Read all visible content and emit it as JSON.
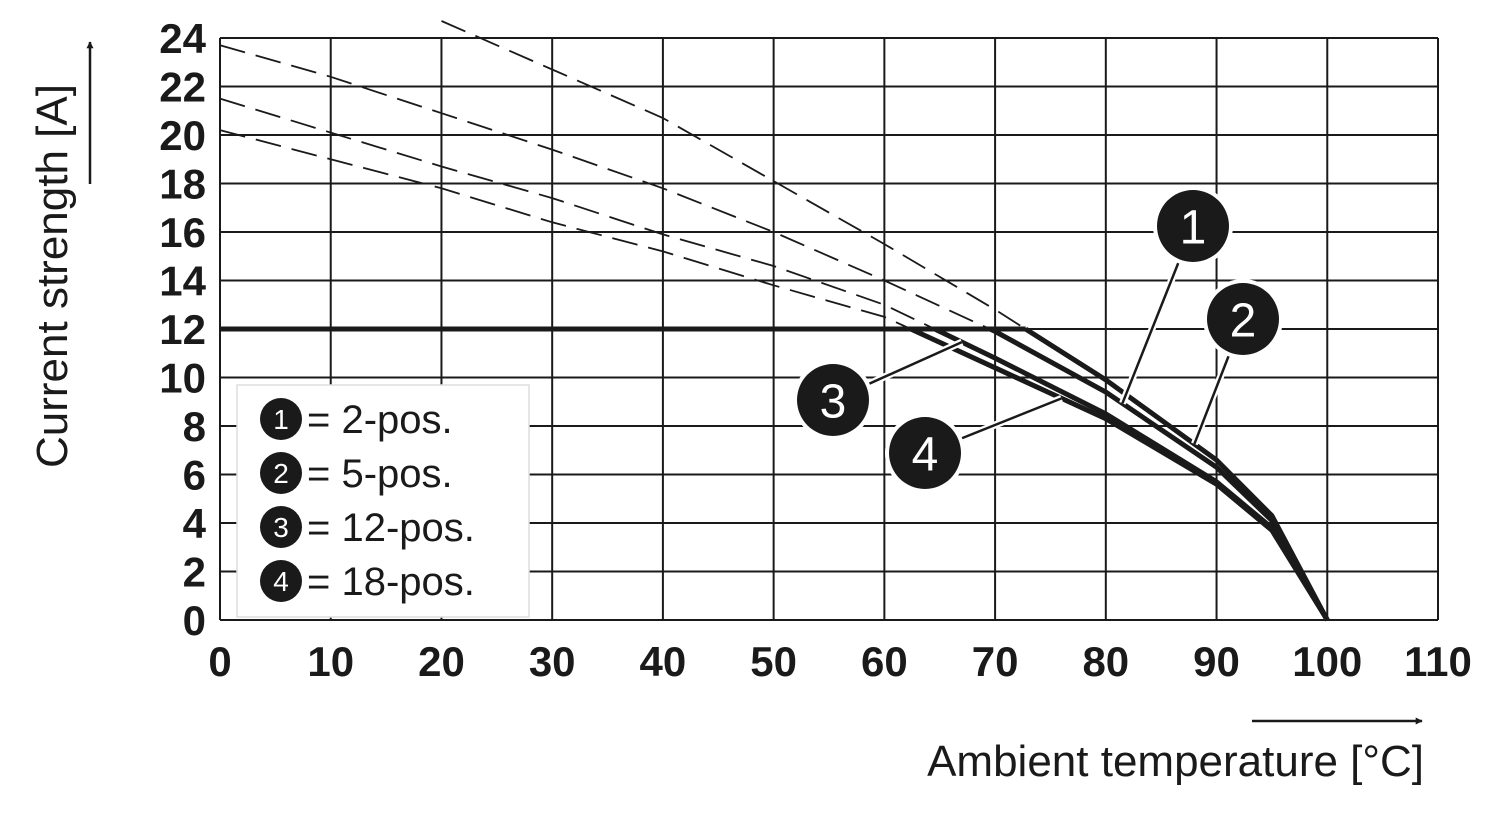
{
  "chart_data": {
    "type": "line",
    "xlabel": "Ambient temperature [°C]",
    "ylabel": "Current strength [A]",
    "xlim": [
      0,
      110
    ],
    "ylim": [
      0,
      24
    ],
    "x_ticks": [
      0,
      10,
      20,
      30,
      40,
      50,
      60,
      70,
      80,
      90,
      100,
      110
    ],
    "y_ticks": [
      0,
      2,
      4,
      6,
      8,
      10,
      12,
      14,
      16,
      18,
      20,
      22,
      24
    ],
    "grid": true,
    "legend_position": "bottom-left",
    "derating_limit": {
      "value": 12,
      "x_start": 0
    },
    "legend": [
      {
        "marker": "1",
        "text": "= 2-pos."
      },
      {
        "marker": "2",
        "text": "= 5-pos."
      },
      {
        "marker": "3",
        "text": "= 12-pos."
      },
      {
        "marker": "4",
        "text": "= 18-pos."
      }
    ],
    "series": [
      {
        "name": "1",
        "line_color": "#1a1a1a",
        "full_curve": {
          "x": [
            0,
            10,
            20,
            30,
            40,
            50,
            60,
            70,
            80,
            90,
            95,
            100
          ],
          "y": [
            23.7,
            22.4,
            20.9,
            19.4,
            17.8,
            16.0,
            14.0,
            11.9,
            9.4,
            6.3,
            4.1,
            0
          ]
        }
      },
      {
        "name": "2",
        "line_color": "#1a1a1a",
        "full_curve": {
          "x": [
            20,
            30,
            40,
            50,
            60,
            70,
            80,
            90,
            95,
            100
          ],
          "y": [
            24.7,
            22.7,
            20.7,
            18.1,
            15.5,
            12.8,
            9.9,
            6.6,
            4.3,
            0
          ]
        }
      },
      {
        "name": "3",
        "line_color": "#1a1a1a",
        "full_curve": {
          "x": [
            0,
            10,
            20,
            30,
            40,
            50,
            60,
            70,
            80,
            90,
            95,
            100
          ],
          "y": [
            21.5,
            20.1,
            18.7,
            17.4,
            15.9,
            14.6,
            13.0,
            10.8,
            8.5,
            5.7,
            3.8,
            0
          ]
        }
      },
      {
        "name": "4",
        "line_color": "#1a1a1a",
        "full_curve": {
          "x": [
            0,
            10,
            20,
            30,
            40,
            50,
            60,
            70,
            80,
            90,
            95,
            100
          ],
          "y": [
            20.2,
            19.0,
            17.8,
            16.4,
            15.2,
            13.8,
            12.5,
            10.4,
            8.3,
            5.6,
            3.7,
            0
          ]
        }
      }
    ]
  }
}
